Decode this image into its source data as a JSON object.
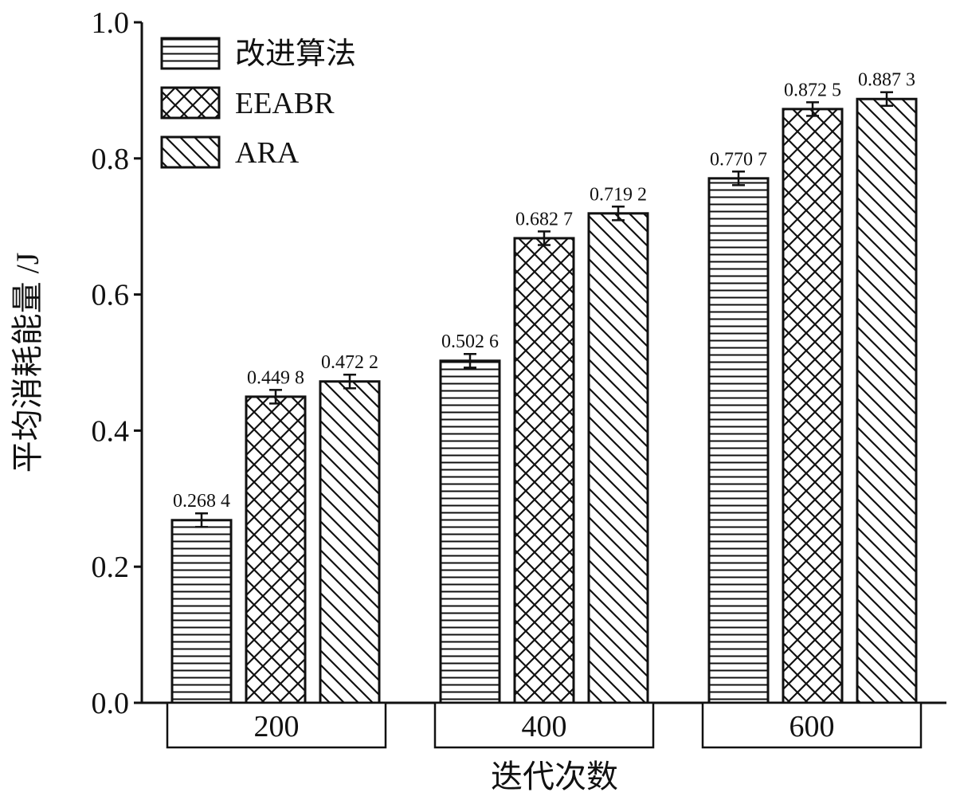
{
  "chart_data": {
    "type": "bar",
    "title": "",
    "xlabel": "迭代次数",
    "ylabel": "平均消耗能量 /J",
    "categories": [
      "200",
      "400",
      "600"
    ],
    "ylim": [
      0,
      1.0
    ],
    "yticks": [
      "0.0",
      "0.2",
      "0.4",
      "0.6",
      "0.8",
      "1.0"
    ],
    "grid": false,
    "legend_position": "top-left",
    "error_bars": true,
    "series": [
      {
        "name": "改进算法",
        "pattern": "horizontal-lines",
        "values": [
          0.2684,
          0.5026,
          0.7707
        ],
        "labels": [
          "0.268 4",
          "0.502 6",
          "0.770 7"
        ],
        "errors": [
          0.01,
          0.01,
          0.01
        ]
      },
      {
        "name": "EEABR",
        "pattern": "crosshatch",
        "values": [
          0.4498,
          0.6827,
          0.8725
        ],
        "labels": [
          "0.449 8",
          "0.682 7",
          "0.872 5"
        ],
        "errors": [
          0.01,
          0.01,
          0.01
        ]
      },
      {
        "name": "ARA",
        "pattern": "diagonal-lines",
        "values": [
          0.4722,
          0.7192,
          0.8873
        ],
        "labels": [
          "0.472 2",
          "0.719 2",
          "0.887 3"
        ],
        "errors": [
          0.01,
          0.01,
          0.01
        ]
      }
    ],
    "colors": {
      "stroke": "#111111",
      "fill": "#ffffff"
    }
  }
}
